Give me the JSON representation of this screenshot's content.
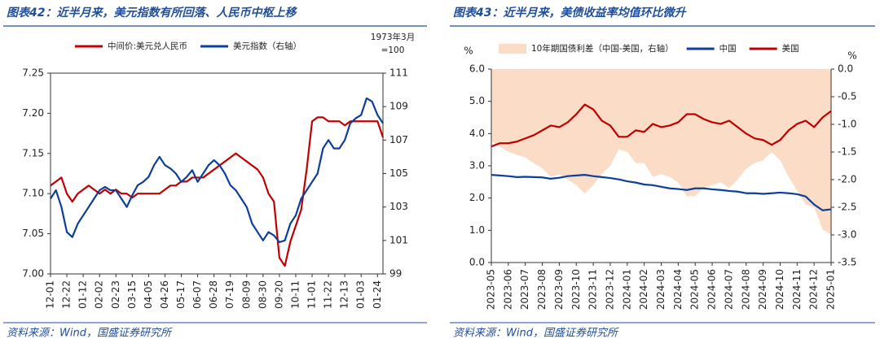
{
  "chart_data": [
    {
      "type": "line",
      "title": "图表42：近半月来，美元指数有所回落、人民币中枢上移",
      "source": "资料来源：Wind，国盛证券研究所",
      "annotations": [
        "1973年3月",
        "=100"
      ],
      "legend": "top",
      "frame": true,
      "categories": [
        "12-01",
        null,
        null,
        "12-22",
        null,
        null,
        "01-12",
        null,
        null,
        "02-02",
        null,
        null,
        "02-23",
        null,
        null,
        "03-15",
        null,
        null,
        "04-05",
        null,
        null,
        "04-26",
        null,
        null,
        "05-17",
        null,
        null,
        "06-07",
        null,
        null,
        "06-28",
        null,
        null,
        "07-19",
        null,
        null,
        "08-09",
        null,
        null,
        "08-30",
        null,
        null,
        "09-20",
        null,
        null,
        "10-11",
        null,
        null,
        "11-01",
        null,
        null,
        "11-22",
        null,
        null,
        "12-13",
        null,
        null,
        "01-03",
        null,
        null,
        "01-24",
        null
      ],
      "ylim": [
        7.0,
        7.25
      ],
      "yticks": [
        {
          "value": 7.0,
          "label": "7.00"
        },
        7.05,
        {
          "value": 7.1,
          "label": "7.10"
        },
        7.15,
        {
          "value": 7.2,
          "label": "7.20"
        },
        7.25
      ],
      "y2lim": [
        99,
        111
      ],
      "y2ticks": [
        99,
        101,
        103,
        105,
        107,
        109,
        111
      ],
      "series": [
        {
          "name": "中间价:美元兑人民币",
          "color": "#c00000",
          "values": [
            7.11,
            7.115,
            7.12,
            7.1,
            7.09,
            7.1,
            7.105,
            7.11,
            7.105,
            7.1,
            7.105,
            7.1,
            7.105,
            7.1,
            7.1,
            7.095,
            7.1,
            7.1,
            7.1,
            7.1,
            7.1,
            7.105,
            7.11,
            7.11,
            7.115,
            7.115,
            7.12,
            7.12,
            7.12,
            7.125,
            7.13,
            7.135,
            7.14,
            7.145,
            7.15,
            7.145,
            7.14,
            7.135,
            7.13,
            7.12,
            7.1,
            7.09,
            7.02,
            7.01,
            7.04,
            7.06,
            7.08,
            7.13,
            7.19,
            7.195,
            7.195,
            7.19,
            7.19,
            7.19,
            7.185,
            7.19,
            7.19,
            7.19,
            7.19,
            7.19,
            7.19,
            7.17
          ]
        },
        {
          "name": "美元指数（右轴）",
          "color": "#0d3e99",
          "axis": "y2",
          "values": [
            103.5,
            104,
            103,
            101.5,
            101.2,
            102,
            102.5,
            103,
            103.5,
            104,
            104.2,
            104,
            104,
            103.5,
            103,
            103.7,
            104.3,
            104.5,
            104.8,
            105.5,
            106,
            105.5,
            105.3,
            105,
            104.5,
            104.8,
            105.2,
            104.5,
            105,
            105.5,
            105.8,
            105.5,
            105,
            104.3,
            104,
            103.5,
            103,
            102,
            101.5,
            101,
            101.5,
            101.3,
            100.9,
            101,
            102,
            102.5,
            103.5,
            104,
            104.5,
            105,
            106.5,
            107,
            106.5,
            106.5,
            107,
            108,
            108.3,
            108.5,
            109.5,
            109.3,
            108.5,
            108
          ]
        }
      ]
    },
    {
      "type": "line",
      "title": "图表43：近半月来，美债收益率均值环比微升",
      "source": "资料来源：Wind，国盛证券研究所",
      "ylabel": "%",
      "y2label": "%",
      "legend": "top",
      "frame": false,
      "categories": [
        "2023-05",
        null,
        "2023-06",
        null,
        "2023-07",
        null,
        "2023-08",
        null,
        "2023-09",
        null,
        "2023-10",
        null,
        "2023-11",
        null,
        "2023-12",
        null,
        "2024-01",
        null,
        "2024-02",
        null,
        "2024-03",
        null,
        "2024-04",
        null,
        "2024-05",
        null,
        "2024-06",
        null,
        "2024-07",
        null,
        "2024-08",
        null,
        "2024-09",
        null,
        "2024-10",
        null,
        "2024-11",
        null,
        "2024-12",
        null,
        "2025-01"
      ],
      "ylim": [
        0,
        6
      ],
      "yticks": [
        {
          "value": 0,
          "label": "0.0"
        },
        {
          "value": 1,
          "label": "1.0"
        },
        {
          "value": 2,
          "label": "2.0"
        },
        {
          "value": 3,
          "label": "3.0"
        },
        {
          "value": 4,
          "label": "4.0"
        },
        {
          "value": 5,
          "label": "5.0"
        },
        {
          "value": 6,
          "label": "6.0"
        }
      ],
      "y2lim": [
        -3.5,
        0
      ],
      "y2ticks": [
        -3.5,
        {
          "value": -3,
          "label": "-3.0"
        },
        -2.5,
        {
          "value": -2,
          "label": "-2.0"
        },
        -1.5,
        {
          "value": -1,
          "label": "-1.0"
        },
        -0.5,
        {
          "value": 0,
          "label": "0.0"
        }
      ],
      "series": [
        {
          "name": "10年期国债利差（中国-美国，右轴）",
          "color": "#fbdcc6",
          "axis": "y2",
          "style": "area",
          "values": [
            -1.3,
            -1.4,
            -1.5,
            -1.55,
            -1.6,
            -1.7,
            -1.8,
            -1.95,
            -1.9,
            -2.0,
            -2.1,
            -2.25,
            -2.1,
            -1.9,
            -1.75,
            -1.45,
            -1.5,
            -1.7,
            -1.7,
            -1.95,
            -1.9,
            -1.95,
            -2.05,
            -2.3,
            -2.3,
            -2.15,
            -2.1,
            -2.05,
            -2.15,
            -2.0,
            -1.8,
            -1.7,
            -1.65,
            -1.5,
            -1.65,
            -1.95,
            -2.2,
            -2.45,
            -2.5,
            -2.9,
            -3.0
          ]
        },
        {
          "name": "中国",
          "color": "#0d3e99",
          "values": [
            2.72,
            2.7,
            2.68,
            2.65,
            2.66,
            2.65,
            2.64,
            2.6,
            2.63,
            2.68,
            2.7,
            2.72,
            2.68,
            2.65,
            2.62,
            2.58,
            2.52,
            2.48,
            2.42,
            2.4,
            2.35,
            2.3,
            2.28,
            2.25,
            2.3,
            2.3,
            2.27,
            2.25,
            2.22,
            2.2,
            2.15,
            2.15,
            2.13,
            2.15,
            2.17,
            2.15,
            2.12,
            2.05,
            1.8,
            1.62,
            1.65
          ]
        },
        {
          "name": "美国",
          "color": "#c00000",
          "values": [
            3.6,
            3.7,
            3.7,
            3.75,
            3.85,
            3.95,
            4.1,
            4.25,
            4.2,
            4.35,
            4.6,
            4.9,
            4.75,
            4.4,
            4.25,
            3.9,
            3.9,
            4.1,
            4.05,
            4.3,
            4.2,
            4.25,
            4.35,
            4.6,
            4.6,
            4.45,
            4.35,
            4.3,
            4.4,
            4.2,
            4.0,
            3.85,
            3.8,
            3.65,
            3.8,
            4.1,
            4.3,
            4.4,
            4.2,
            4.5,
            4.7
          ]
        }
      ]
    }
  ]
}
